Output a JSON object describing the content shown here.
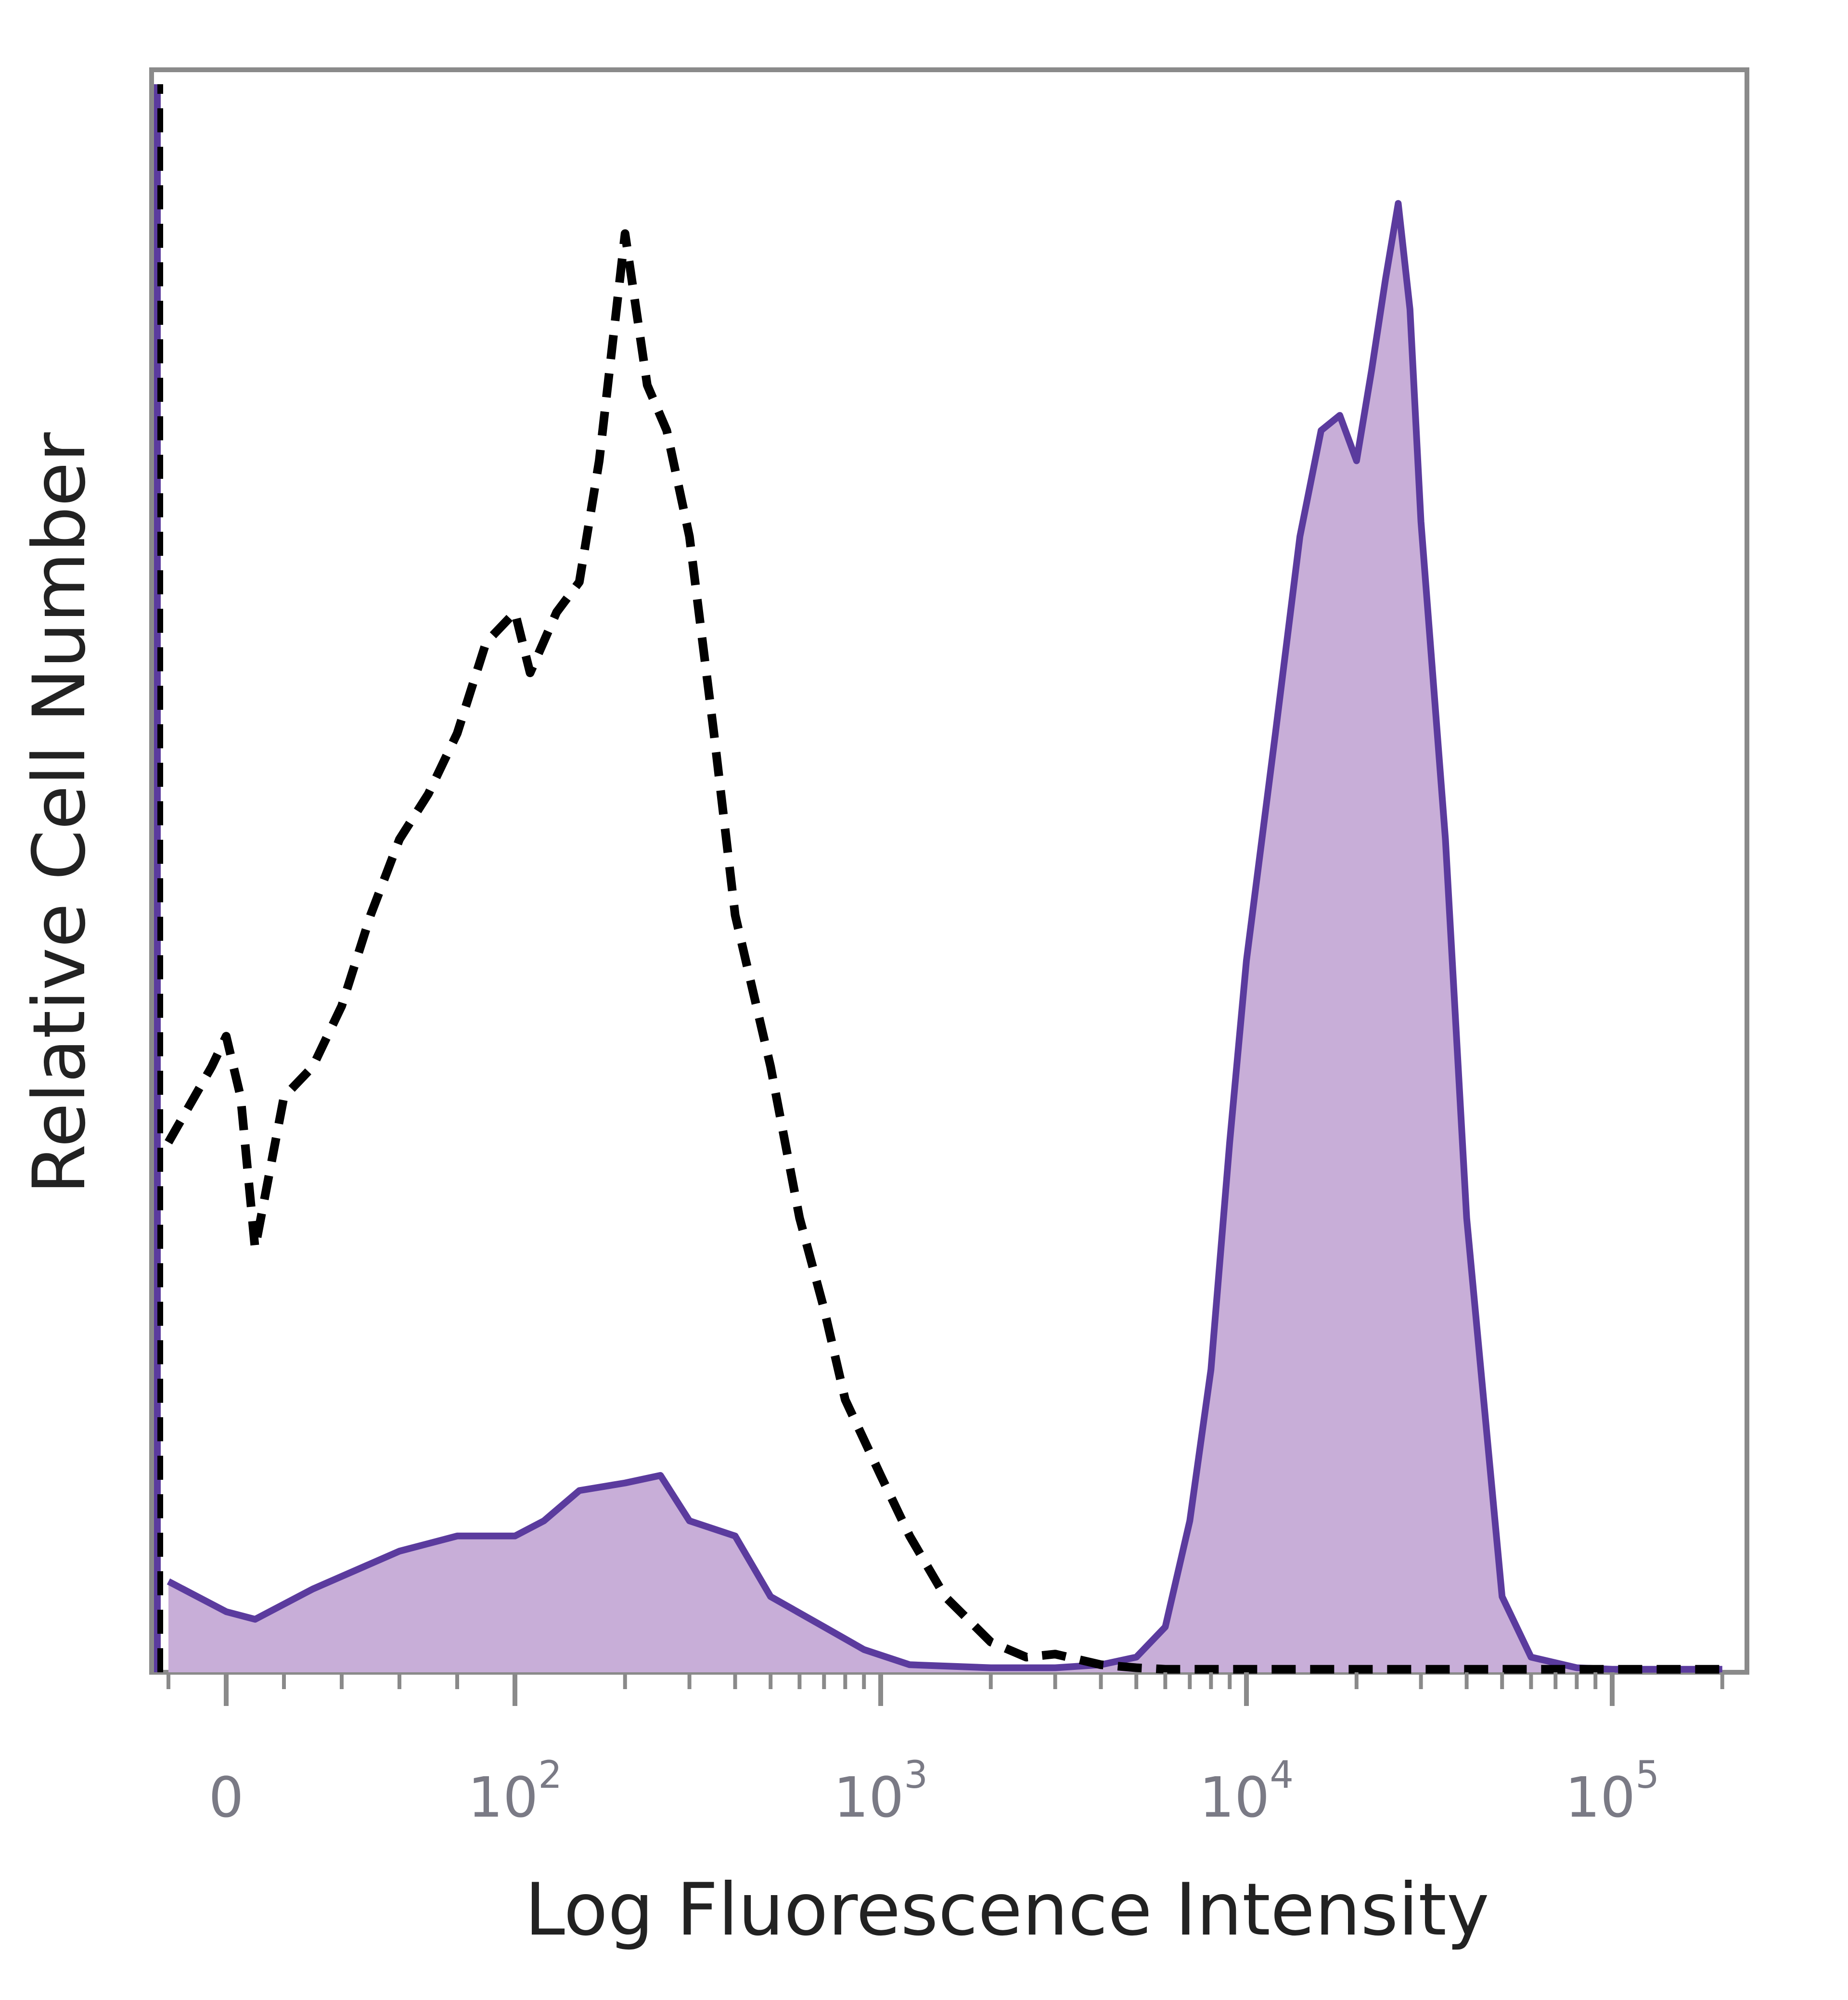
{
  "chart_data": {
    "type": "area",
    "x_scale": "biexponential (log above ~10^2)",
    "xlabel": "Log Fluorescence Intensity",
    "ylabel": "Relative Cell Number",
    "x_ticks": [
      {
        "base": "0",
        "exp": ""
      },
      {
        "base": "10",
        "exp": "2"
      },
      {
        "base": "10",
        "exp": "3"
      },
      {
        "base": "10",
        "exp": "4"
      },
      {
        "base": "10",
        "exp": "5"
      }
    ],
    "grid": false,
    "legend": "none",
    "colors": {
      "stained_line": "#5b3b9e",
      "stained_fill": "#c8aed8",
      "control_line": "#000000",
      "frame": "#8a8a8a"
    },
    "series": [
      {
        "style": "filled solid",
        "x": [
          -20,
          0,
          10,
          30,
          60,
          80,
          100,
          120,
          150,
          200,
          250,
          300,
          400,
          500,
          700,
          900,
          1200,
          2000,
          3000,
          4000,
          5000,
          6000,
          7000,
          8000,
          9000,
          10000,
          12000,
          14000,
          16000,
          18000,
          20000,
          22000,
          24000,
          26000,
          28000,
          30000,
          35000,
          40000,
          50000,
          60000,
          80000,
          100000,
          200000
        ],
        "y": [
          0.06,
          0.04,
          0.035,
          0.055,
          0.08,
          0.09,
          0.09,
          0.1,
          0.12,
          0.125,
          0.13,
          0.1,
          0.09,
          0.05,
          0.03,
          0.015,
          0.005,
          0.003,
          0.003,
          0.005,
          0.01,
          0.03,
          0.1,
          0.2,
          0.35,
          0.47,
          0.62,
          0.75,
          0.82,
          0.83,
          0.8,
          0.86,
          0.92,
          0.97,
          0.9,
          0.76,
          0.55,
          0.3,
          0.05,
          0.01,
          0.003,
          0.002,
          0.002
        ]
      },
      {
        "style": "dashed",
        "x": [
          -20,
          -5,
          0,
          5,
          10,
          20,
          30,
          40,
          50,
          60,
          70,
          80,
          90,
          100,
          110,
          130,
          150,
          170,
          200,
          230,
          260,
          300,
          350,
          400,
          500,
          600,
          700,
          800,
          1000,
          1200,
          1500,
          2000,
          2500,
          3000,
          4000,
          5000,
          6000,
          10000,
          100000,
          200000
        ],
        "y": [
          0.35,
          0.4,
          0.42,
          0.38,
          0.28,
          0.38,
          0.4,
          0.44,
          0.5,
          0.55,
          0.58,
          0.62,
          0.68,
          0.7,
          0.66,
          0.7,
          0.72,
          0.8,
          0.95,
          0.85,
          0.82,
          0.75,
          0.62,
          0.5,
          0.4,
          0.3,
          0.24,
          0.18,
          0.13,
          0.09,
          0.05,
          0.02,
          0.01,
          0.012,
          0.005,
          0.003,
          0.002,
          0.002,
          0.002,
          0.002
        ]
      }
    ]
  }
}
